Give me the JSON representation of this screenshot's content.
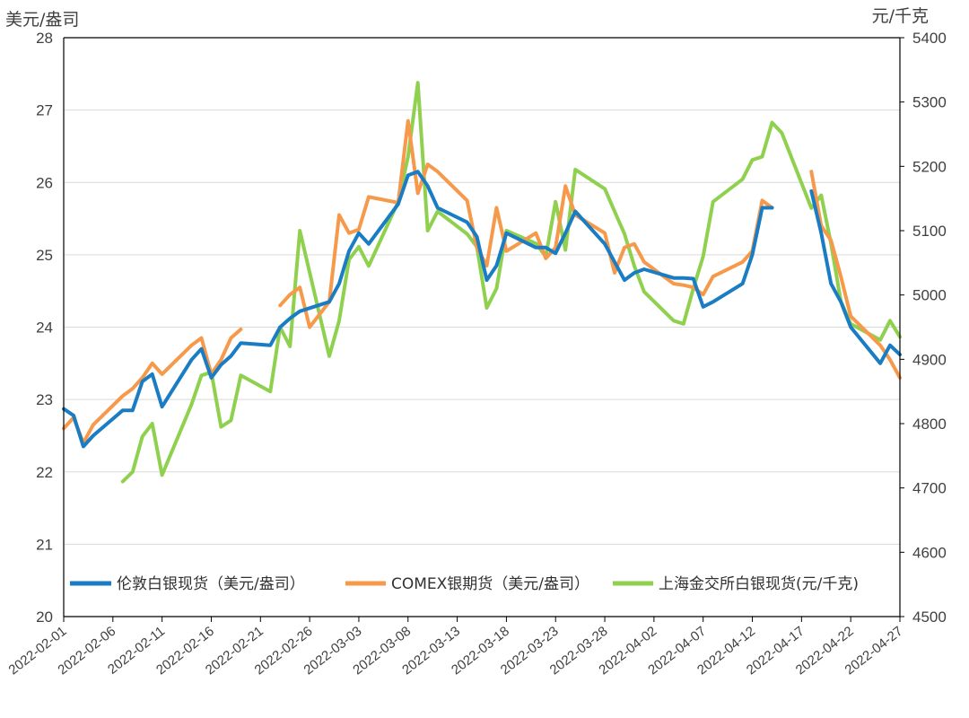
{
  "chart_data": {
    "type": "line",
    "left_axis_unit": "美元/盎司",
    "right_axis_unit": "元/千克",
    "ylim_left": [
      20,
      28
    ],
    "ylim_right": [
      4500,
      5400
    ],
    "y_ticks_left": [
      20,
      21,
      22,
      23,
      24,
      25,
      26,
      27,
      28
    ],
    "y_ticks_right": [
      4500,
      4600,
      4700,
      4800,
      4900,
      5000,
      5100,
      5200,
      5300,
      5400
    ],
    "x_ticks": [
      "2022-02-01",
      "2022-02-06",
      "2022-02-11",
      "2022-02-16",
      "2022-02-21",
      "2022-02-26",
      "2022-03-03",
      "2022-03-08",
      "2022-03-13",
      "2022-03-18",
      "2022-03-23",
      "2022-03-28",
      "2022-04-02",
      "2022-04-07",
      "2022-04-12",
      "2022-04-17",
      "2022-04-22",
      "2022-04-27"
    ],
    "x_start": "2022-02-01",
    "x_end": "2022-04-27",
    "grid": true,
    "legend_position": "bottom",
    "colors": {
      "london": "#1a7dc4",
      "comex": "#f7994a",
      "shanghai": "#8fd14f"
    },
    "series": [
      {
        "name": "伦敦白银现货（美元/盎司）",
        "axis": "left",
        "color": "#1a7dc4",
        "segments": [
          [
            [
              "2022-02-01",
              22.87
            ],
            [
              "2022-02-02",
              22.78
            ],
            [
              "2022-02-03",
              22.35
            ],
            [
              "2022-02-04",
              22.5
            ],
            [
              "2022-02-07",
              22.85
            ],
            [
              "2022-02-08",
              22.85
            ],
            [
              "2022-02-09",
              23.25
            ],
            [
              "2022-02-10",
              23.35
            ],
            [
              "2022-02-11",
              22.9
            ],
            [
              "2022-02-14",
              23.55
            ],
            [
              "2022-02-15",
              23.7
            ],
            [
              "2022-02-16",
              23.3
            ],
            [
              "2022-02-17",
              23.48
            ],
            [
              "2022-02-18",
              23.6
            ],
            [
              "2022-02-19",
              23.78
            ],
            [
              "2022-02-22",
              23.75
            ],
            [
              "2022-02-23",
              24.0
            ],
            [
              "2022-02-24",
              24.12
            ],
            [
              "2022-02-25",
              24.22
            ],
            [
              "2022-02-28",
              24.35
            ],
            [
              "2022-03-01",
              24.6
            ],
            [
              "2022-03-02",
              25.05
            ],
            [
              "2022-03-03",
              25.3
            ],
            [
              "2022-03-04",
              25.15
            ],
            [
              "2022-03-07",
              25.7
            ],
            [
              "2022-03-08",
              26.1
            ],
            [
              "2022-03-09",
              26.15
            ],
            [
              "2022-03-10",
              25.95
            ],
            [
              "2022-03-11",
              25.65
            ],
            [
              "2022-03-14",
              25.45
            ],
            [
              "2022-03-15",
              25.25
            ],
            [
              "2022-03-16",
              24.65
            ],
            [
              "2022-03-17",
              24.85
            ],
            [
              "2022-03-18",
              25.3
            ],
            [
              "2022-03-21",
              25.1
            ],
            [
              "2022-03-22",
              25.1
            ],
            [
              "2022-03-23",
              25.02
            ],
            [
              "2022-03-24",
              25.3
            ],
            [
              "2022-03-25",
              25.6
            ],
            [
              "2022-03-28",
              25.15
            ],
            [
              "2022-03-29",
              24.9
            ],
            [
              "2022-03-30",
              24.65
            ],
            [
              "2022-03-31",
              24.75
            ],
            [
              "2022-04-01",
              24.8
            ],
            [
              "2022-04-04",
              24.68
            ],
            [
              "2022-04-05",
              24.68
            ],
            [
              "2022-04-06",
              24.67
            ],
            [
              "2022-04-07",
              24.28
            ],
            [
              "2022-04-08",
              24.35
            ],
            [
              "2022-04-11",
              24.6
            ],
            [
              "2022-04-12",
              25.0
            ],
            [
              "2022-04-13",
              25.65
            ],
            [
              "2022-04-14",
              25.65
            ]
          ],
          [
            [
              "2022-04-18",
              25.88
            ],
            [
              "2022-04-19",
              25.3
            ],
            [
              "2022-04-20",
              24.6
            ],
            [
              "2022-04-21",
              24.35
            ],
            [
              "2022-04-22",
              24.0
            ],
            [
              "2022-04-25",
              23.5
            ],
            [
              "2022-04-26",
              23.75
            ],
            [
              "2022-04-27",
              23.62
            ]
          ]
        ]
      },
      {
        "name": "COMEX银期货（美元/盎司）",
        "axis": "left",
        "color": "#f7994a",
        "segments": [
          [
            [
              "2022-02-01",
              22.6
            ],
            [
              "2022-02-02",
              22.75
            ],
            [
              "2022-02-03",
              22.4
            ],
            [
              "2022-02-04",
              22.65
            ],
            [
              "2022-02-07",
              23.05
            ],
            [
              "2022-02-08",
              23.15
            ],
            [
              "2022-02-09",
              23.3
            ],
            [
              "2022-02-10",
              23.5
            ],
            [
              "2022-02-11",
              23.35
            ],
            [
              "2022-02-14",
              23.75
            ],
            [
              "2022-02-15",
              23.85
            ],
            [
              "2022-02-16",
              23.35
            ],
            [
              "2022-02-17",
              23.55
            ],
            [
              "2022-02-18",
              23.85
            ],
            [
              "2022-02-19",
              23.97
            ]
          ],
          [
            [
              "2022-02-23",
              24.3
            ],
            [
              "2022-02-24",
              24.45
            ],
            [
              "2022-02-25",
              24.55
            ],
            [
              "2022-02-26",
              24.0
            ],
            [
              "2022-02-28",
              24.35
            ],
            [
              "2022-03-01",
              25.55
            ],
            [
              "2022-03-02",
              25.3
            ],
            [
              "2022-03-03",
              25.35
            ],
            [
              "2022-03-04",
              25.8
            ],
            [
              "2022-03-07",
              25.72
            ],
            [
              "2022-03-08",
              26.85
            ],
            [
              "2022-03-09",
              25.85
            ],
            [
              "2022-03-10",
              26.25
            ],
            [
              "2022-03-11",
              26.15
            ],
            [
              "2022-03-14",
              25.75
            ],
            [
              "2022-03-15",
              25.1
            ],
            [
              "2022-03-16",
              24.85
            ],
            [
              "2022-03-17",
              25.65
            ],
            [
              "2022-03-18",
              25.05
            ],
            [
              "2022-03-21",
              25.3
            ],
            [
              "2022-03-22",
              24.95
            ],
            [
              "2022-03-23",
              25.1
            ],
            [
              "2022-03-24",
              25.95
            ],
            [
              "2022-03-25",
              25.55
            ],
            [
              "2022-03-28",
              25.3
            ],
            [
              "2022-03-29",
              24.75
            ],
            [
              "2022-03-30",
              25.1
            ],
            [
              "2022-03-31",
              25.15
            ],
            [
              "2022-04-01",
              24.9
            ],
            [
              "2022-04-04",
              24.6
            ],
            [
              "2022-04-05",
              24.58
            ],
            [
              "2022-04-06",
              24.55
            ],
            [
              "2022-04-07",
              24.45
            ],
            [
              "2022-04-08",
              24.7
            ],
            [
              "2022-04-11",
              24.9
            ],
            [
              "2022-04-12",
              25.05
            ],
            [
              "2022-04-13",
              25.75
            ],
            [
              "2022-04-14",
              25.65
            ]
          ],
          [
            [
              "2022-04-18",
              26.15
            ],
            [
              "2022-04-19",
              25.4
            ],
            [
              "2022-04-20",
              25.2
            ],
            [
              "2022-04-21",
              24.7
            ],
            [
              "2022-04-22",
              24.15
            ],
            [
              "2022-04-25",
              23.75
            ],
            [
              "2022-04-26",
              23.55
            ],
            [
              "2022-04-27",
              23.3
            ]
          ]
        ]
      },
      {
        "name": "上海金交所白银现货(元/千克)",
        "axis": "right",
        "color": "#8fd14f",
        "segments": [
          [
            [
              "2022-02-07",
              4710
            ],
            [
              "2022-02-08",
              4725
            ],
            [
              "2022-02-09",
              4780
            ],
            [
              "2022-02-10",
              4800
            ],
            [
              "2022-02-11",
              4720
            ],
            [
              "2022-02-14",
              4830
            ],
            [
              "2022-02-15",
              4875
            ],
            [
              "2022-02-16",
              4880
            ],
            [
              "2022-02-17",
              4795
            ],
            [
              "2022-02-18",
              4805
            ],
            [
              "2022-02-19",
              4875
            ],
            [
              "2022-02-22",
              4850
            ],
            [
              "2022-02-23",
              4950
            ],
            [
              "2022-02-24",
              4920
            ],
            [
              "2022-02-25",
              5100
            ],
            [
              "2022-02-28",
              4905
            ],
            [
              "2022-03-01",
              4960
            ],
            [
              "2022-03-02",
              5055
            ],
            [
              "2022-03-03",
              5075
            ],
            [
              "2022-03-04",
              5045
            ],
            [
              "2022-03-07",
              5145
            ],
            [
              "2022-03-08",
              5215
            ],
            [
              "2022-03-09",
              5330
            ],
            [
              "2022-03-10",
              5100
            ],
            [
              "2022-03-11",
              5130
            ],
            [
              "2022-03-14",
              5095
            ],
            [
              "2022-03-15",
              5075
            ],
            [
              "2022-03-16",
              4980
            ],
            [
              "2022-03-17",
              5010
            ],
            [
              "2022-03-18",
              5100
            ],
            [
              "2022-03-21",
              5080
            ],
            [
              "2022-03-22",
              5060
            ],
            [
              "2022-03-23",
              5145
            ],
            [
              "2022-03-24",
              5070
            ],
            [
              "2022-03-25",
              5195
            ],
            [
              "2022-03-28",
              5165
            ],
            [
              "2022-03-29",
              5130
            ],
            [
              "2022-03-30",
              5095
            ],
            [
              "2022-03-31",
              5045
            ],
            [
              "2022-04-01",
              5005
            ],
            [
              "2022-04-04",
              4960
            ],
            [
              "2022-04-05",
              4955
            ],
            [
              "2022-04-06",
              5010
            ],
            [
              "2022-04-07",
              5060
            ],
            [
              "2022-04-08",
              5145
            ],
            [
              "2022-04-11",
              5180
            ],
            [
              "2022-04-12",
              5210
            ],
            [
              "2022-04-13",
              5215
            ],
            [
              "2022-04-14",
              5268
            ],
            [
              "2022-04-15",
              5252
            ],
            [
              "2022-04-18",
              5135
            ],
            [
              "2022-04-19",
              5155
            ],
            [
              "2022-04-20",
              5080
            ],
            [
              "2022-04-21",
              4990
            ],
            [
              "2022-04-22",
              4955
            ],
            [
              "2022-04-25",
              4930
            ],
            [
              "2022-04-26",
              4960
            ],
            [
              "2022-04-27",
              4935
            ]
          ]
        ]
      }
    ]
  }
}
